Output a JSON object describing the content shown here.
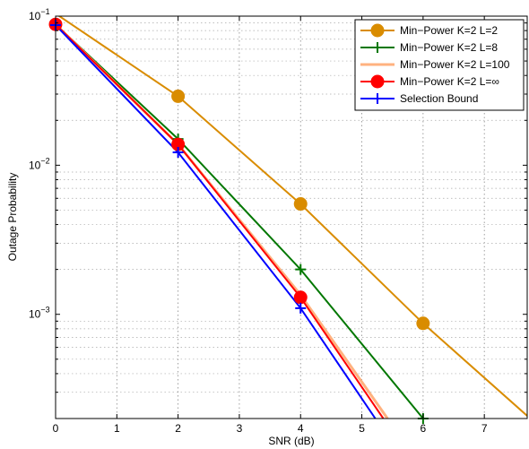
{
  "chart_data": {
    "type": "line",
    "title": "",
    "xlabel": "SNR (dB)",
    "ylabel": "Outage Probability",
    "xlim": [
      0,
      7.7
    ],
    "ylim": [
      0.0002,
      0.1
    ],
    "yscale": "log",
    "grid": true,
    "legend_position": "top-right",
    "x_ticks": [
      {
        "value": 0,
        "label": "0"
      },
      {
        "value": 1,
        "label": "1"
      },
      {
        "value": 2,
        "label": "2"
      },
      {
        "value": 3,
        "label": "3"
      },
      {
        "value": 4,
        "label": "4"
      },
      {
        "value": 5,
        "label": "5"
      },
      {
        "value": 6,
        "label": "6"
      },
      {
        "value": 7,
        "label": "7"
      }
    ],
    "y_ticks": [
      {
        "value": 0.1,
        "base": "10",
        "exp": "−1"
      },
      {
        "value": 0.01,
        "base": "10",
        "exp": "−2"
      },
      {
        "value": 0.001,
        "base": "10",
        "exp": "−3"
      }
    ],
    "series": [
      {
        "name": "Min−Power K=2 L=2",
        "color": "#d98c00",
        "marker": "circle-filled",
        "x": [
          0,
          2,
          4,
          6,
          7.75
        ],
        "y": [
          0.104,
          0.029,
          0.0055,
          0.00087,
          0.0002
        ],
        "marker_x": [
          2,
          4,
          6
        ]
      },
      {
        "name": "Min−Power K=2 L=8",
        "color": "#007700",
        "marker": "plus",
        "x": [
          0,
          2,
          4,
          6
        ],
        "y": [
          0.088,
          0.015,
          0.002,
          0.0002
        ],
        "marker_x": [
          0,
          2,
          4,
          6
        ]
      },
      {
        "name": "Min−Power K=2 L=100",
        "color": "#ffb27f",
        "marker": "none",
        "x": [
          0,
          2,
          4,
          5.42
        ],
        "y": [
          0.088,
          0.0138,
          0.00135,
          0.0002
        ],
        "marker_x": []
      },
      {
        "name": "Min−Power K=2 L=∞",
        "color": "#ff0000",
        "marker": "circle-filled",
        "x": [
          0,
          2,
          4,
          5.35
        ],
        "y": [
          0.088,
          0.0138,
          0.0013,
          0.0002
        ],
        "marker_x": [
          0,
          2,
          4
        ]
      },
      {
        "name": "Selection Bound",
        "color": "#0000ff",
        "marker": "plus",
        "x": [
          0,
          2,
          4,
          5.22
        ],
        "y": [
          0.087,
          0.0122,
          0.0011,
          0.0002
        ],
        "marker_x": [
          0,
          2,
          4
        ]
      }
    ]
  }
}
